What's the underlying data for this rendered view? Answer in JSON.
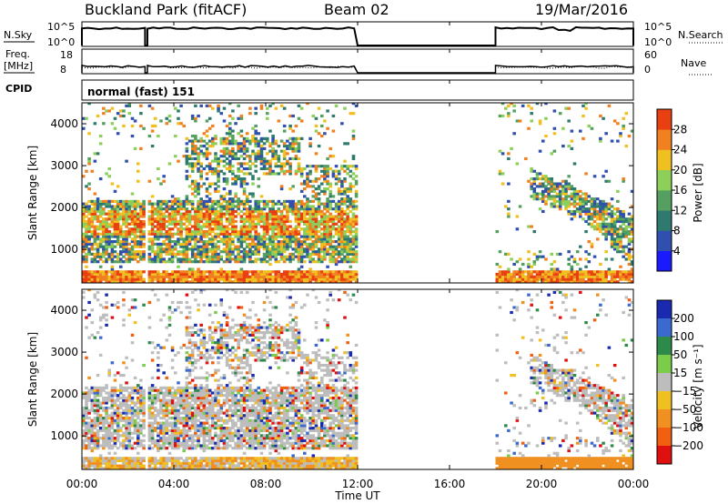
{
  "header": {
    "station": "Buckland Park (fitACF)",
    "beam": "Beam 02",
    "date": "19/Mar/2016"
  },
  "top_panels": {
    "nsky_label": "N.Sky",
    "nsky_ticks": [
      "10^5",
      "10^0"
    ],
    "nsearch_label": "N.Search",
    "nsearch_ticks": [
      "10^5",
      "10^0"
    ],
    "freq_label": "Freq.",
    "freq_unit": "[MHz]",
    "freq_ticks": [
      "18",
      "8"
    ],
    "nave_label": "Nave",
    "nave_ticks": [
      "60",
      "0"
    ],
    "cpid_label": "CPID",
    "cpid_text": "normal (fast) 151"
  },
  "chart_data": [
    {
      "type": "heatmap",
      "panel": "power",
      "ylabel": "Slant Range [km]",
      "yticks": [
        "1000",
        "2000",
        "3000",
        "4000"
      ],
      "ylim": [
        200,
        4500
      ],
      "xlim": [
        0,
        24
      ],
      "colorbar_label": "Power [dB]",
      "colorbar_ticks": [
        "4",
        "8",
        "12",
        "16",
        "20",
        "24",
        "28"
      ],
      "colors": [
        "#1a1aff",
        "#3050b0",
        "#2e7a6e",
        "#55a060",
        "#8ccf5a",
        "#f0c020",
        "#f08020",
        "#e84010"
      ],
      "data_coverage_hours": [
        [
          0.0,
          2.75
        ],
        [
          2.85,
          12.0
        ],
        [
          18.0,
          24.0
        ]
      ]
    },
    {
      "type": "heatmap",
      "panel": "velocity",
      "ylabel": "Slant Range [km]",
      "yticks": [
        "1000",
        "2000",
        "3000",
        "4000"
      ],
      "ylim": [
        200,
        4500
      ],
      "xlim": [
        0,
        24
      ],
      "xticks": [
        "00:00",
        "04:00",
        "08:00",
        "12:00",
        "16:00",
        "20:00",
        "00:00"
      ],
      "xlabel": "Time UT",
      "colorbar_label": "Velocity [m s⁻¹]",
      "colorbar_ticks": [
        "200",
        "100",
        "50",
        "15",
        "−15",
        "−50",
        "−100",
        "−200"
      ],
      "colors": [
        "#1a2ab0",
        "#3a6ad0",
        "#2e8a4a",
        "#7acc4a",
        "#bdbdbd",
        "#f0c020",
        "#f09020",
        "#f06010",
        "#e01010"
      ],
      "data_coverage_hours": [
        [
          0.0,
          2.75
        ],
        [
          2.85,
          12.0
        ],
        [
          18.0,
          24.0
        ]
      ]
    }
  ]
}
